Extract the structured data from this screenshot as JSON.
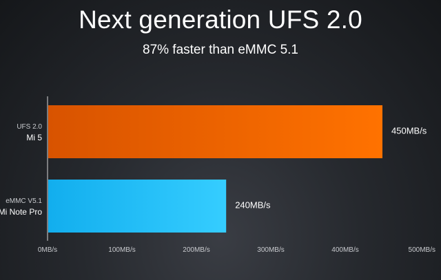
{
  "title": "Next generation UFS 2.0",
  "subtitle": "87% faster than eMMC 5.1",
  "colors": {
    "background": "#1f2126",
    "axis": "#d8d8d8",
    "series": [
      "#f06a00",
      "#27c0f5"
    ]
  },
  "chart_data": {
    "type": "bar",
    "orientation": "horizontal",
    "categories": [
      {
        "line1": "UFS 2.0",
        "line2": "Mi 5"
      },
      {
        "line1": "eMMC V5.1",
        "line2": "Mi Note Pro"
      }
    ],
    "values": [
      450,
      240
    ],
    "value_labels": [
      "450MB/s",
      "240MB/s"
    ],
    "unit": "MB/s",
    "xlim": [
      0,
      500
    ],
    "x_ticks": [
      "0MB/s",
      "100MB/s",
      "200MB/s",
      "300MB/s",
      "400MB/s",
      "500MB/s"
    ],
    "grid": false,
    "legend": "none"
  }
}
